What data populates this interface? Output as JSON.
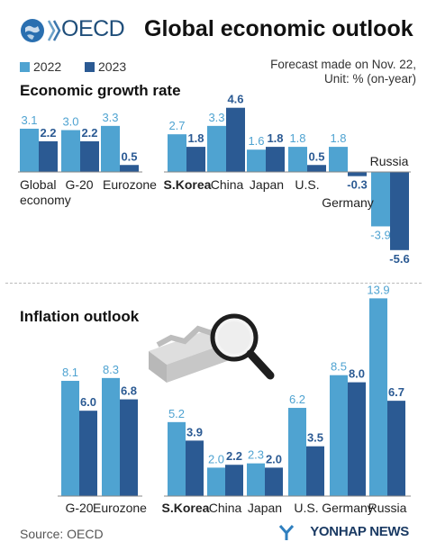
{
  "header": {
    "org": "OECD",
    "title": "Global economic outlook",
    "legend": [
      {
        "label": "2022",
        "color": "#4fa3d1"
      },
      {
        "label": "2023",
        "color": "#2b5a93"
      }
    ],
    "note_line1": "Forecast made on Nov. 22,",
    "note_line2": "Unit: % (on-year)"
  },
  "footer": {
    "source": "Source: OECD",
    "brand": "YONHAP NEWS"
  },
  "chart_data": [
    {
      "type": "bar",
      "title": "Economic growth rate",
      "categories": [
        "Global economy",
        "G-20",
        "Eurozone",
        "S.Korea",
        "China",
        "Japan",
        "U.S.",
        "Germany",
        "Russia"
      ],
      "series": [
        {
          "name": "2022",
          "values": [
            3.1,
            3.0,
            3.3,
            2.7,
            3.3,
            1.6,
            1.8,
            1.8,
            -3.9
          ]
        },
        {
          "name": "2023",
          "values": [
            2.2,
            2.2,
            0.5,
            1.8,
            4.6,
            1.8,
            0.5,
            -0.3,
            -5.6
          ]
        }
      ],
      "labels": {
        "2022": [
          "3.1",
          "3.0",
          "3.3",
          "2.7",
          "3.3",
          "1.6",
          "1.8",
          "1.8",
          "-3.9"
        ],
        "2023": [
          "2.2",
          "2.2",
          "0.5",
          "1.8",
          "4.6",
          "1.8",
          "0.5",
          "-0.3",
          "-5.6"
        ]
      },
      "highlight_category": "S.Korea"
    },
    {
      "type": "bar",
      "title": "Inflation outlook",
      "categories": [
        "G-20",
        "Eurozone",
        "S.Korea",
        "China",
        "Japan",
        "U.S.",
        "Germany",
        "Russia"
      ],
      "series": [
        {
          "name": "2022",
          "values": [
            8.1,
            8.3,
            5.2,
            2.0,
            2.3,
            6.2,
            8.5,
            13.9
          ]
        },
        {
          "name": "2023",
          "values": [
            6.0,
            6.8,
            3.9,
            2.2,
            2.0,
            3.5,
            8.0,
            6.7
          ]
        }
      ],
      "labels": {
        "2022": [
          "8.1",
          "8.3",
          "5.2",
          "2.0",
          "2.3",
          "6.2",
          "8.5",
          "13.9"
        ],
        "2023": [
          "6.0",
          "6.8",
          "3.9",
          "2.2",
          "2.0",
          "3.5",
          "8.0",
          "6.7"
        ]
      },
      "highlight_category": "S.Korea"
    }
  ]
}
